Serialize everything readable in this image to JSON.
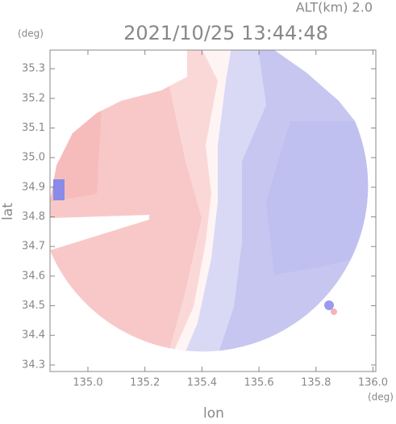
{
  "chart_data": {
    "type": "map",
    "title": "2021/10/25 13:44:48",
    "subtitle": "ALT(km) 2.0",
    "ylabel": "lat",
    "xlabel": "lon",
    "yunit": "(deg)",
    "xunit": "(deg)",
    "xlim": [
      134.867,
      136.01
    ],
    "ylim": [
      34.278,
      35.363
    ],
    "xticks": [
      {
        "value": 135,
        "label": "135.0"
      },
      135.2,
      135.4,
      135.6,
      135.8,
      {
        "value": 136,
        "label": "136.0"
      }
    ],
    "yticks": [
      34.3,
      34.4,
      34.5,
      34.6,
      34.7,
      34.8,
      34.9,
      {
        "value": 35,
        "label": "35.0"
      },
      35.1,
      35.2,
      35.3
    ]
  }
}
